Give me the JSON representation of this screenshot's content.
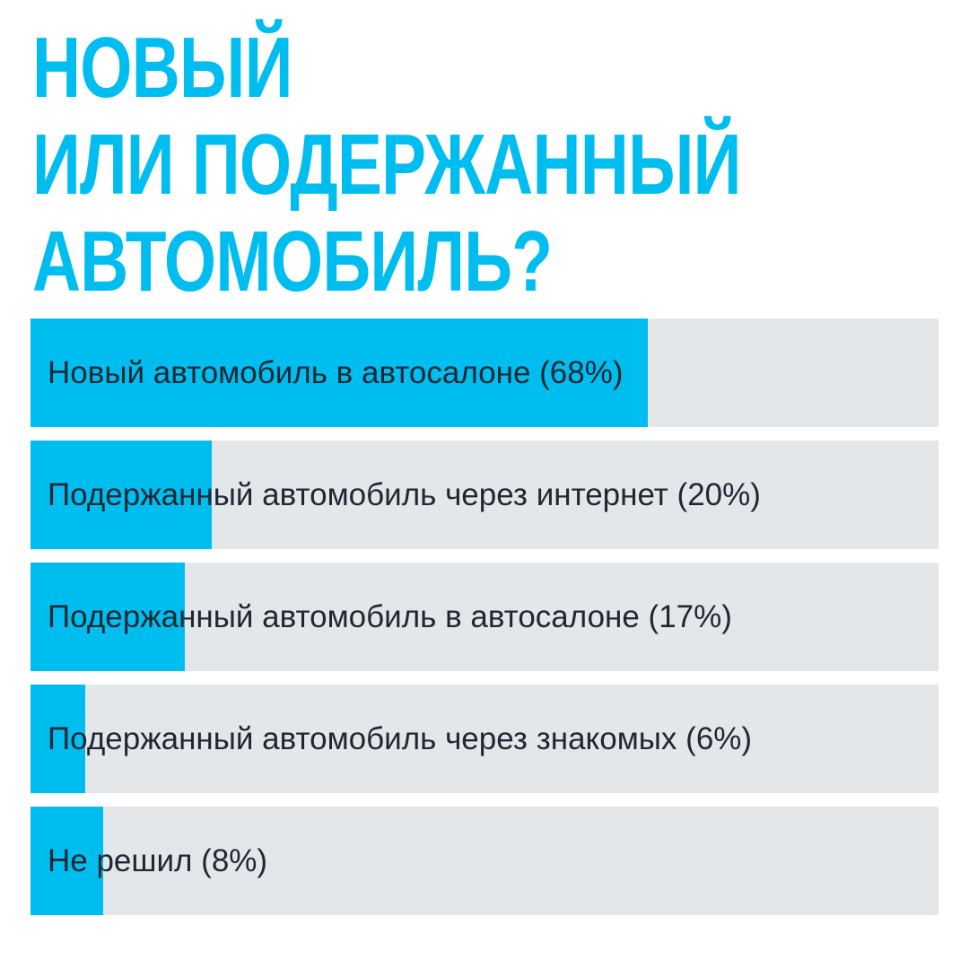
{
  "title_lines": [
    "НОВЫЙ",
    "ИЛИ ПОДЕРЖАННЫЙ",
    "АВТОМОБИЛЬ?"
  ],
  "colors": {
    "accent": "#00bdf0",
    "track": "#e4e7ea",
    "text": "#1f2733"
  },
  "chart_data": {
    "type": "bar",
    "orientation": "horizontal",
    "title": "НОВЫЙ ИЛИ ПОДЕРЖАННЫЙ АВТОМОБИЛЬ?",
    "xlim": [
      0,
      100
    ],
    "unit": "%",
    "grid": false,
    "categories": [
      "Новый автомобиль в автосалоне (68%)",
      "Подержанный автомобиль через интернет (20%)",
      "Подержанный автомобиль в автосалоне (17%)",
      "Подержанный автомобиль через знакомых (6%)",
      "Не решил (8%)"
    ],
    "values": [
      68,
      20,
      17,
      6,
      8
    ]
  }
}
